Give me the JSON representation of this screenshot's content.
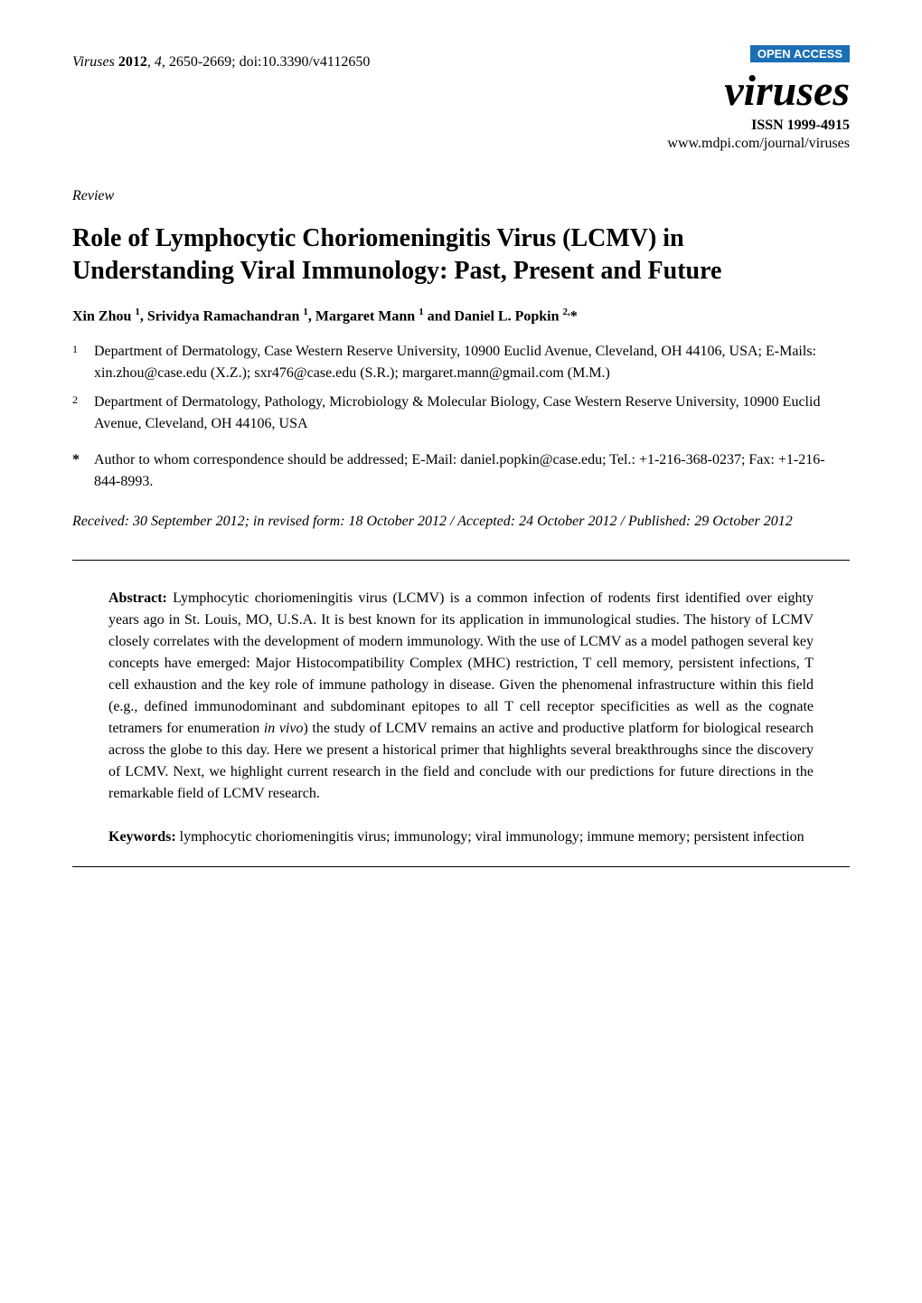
{
  "header": {
    "journal_italic": "Viruses",
    "year_bold": "2012",
    "volume_italic": "4",
    "pages": "2650-2669",
    "doi": "doi:10.3390/v4112650"
  },
  "journal_box": {
    "open_access": "OPEN ACCESS",
    "logo": "viruses",
    "issn": "ISSN 1999-4915",
    "url": "www.mdpi.com/journal/viruses",
    "badge_bg": "#1a6fb5",
    "badge_fg": "#ffffff"
  },
  "article_type": "Review",
  "title": "Role of Lymphocytic Choriomeningitis Virus (LCMV) in Understanding Viral Immunology: Past, Present and Future",
  "authors_html": "Xin Zhou <sup>1</sup>, Srividya Ramachandran <sup>1</sup>, Margaret Mann <sup>1</sup> and Daniel L. Popkin <sup>2,</sup>*",
  "affiliations": [
    {
      "num": "1",
      "text": "Department of Dermatology, Case Western Reserve University, 10900 Euclid Avenue, Cleveland, OH 44106, USA; E-Mails: xin.zhou@case.edu (X.Z.); sxr476@case.edu (S.R.); margaret.mann@gmail.com (M.M.)"
    },
    {
      "num": "2",
      "text": "Department of Dermatology, Pathology, Microbiology & Molecular Biology, Case Western Reserve University, 10900 Euclid Avenue, Cleveland, OH 44106, USA"
    }
  ],
  "corresponding": {
    "mark": "*",
    "text": "Author to whom correspondence should be addressed; E-Mail: daniel.popkin@case.edu; Tel.: +1-216-368-0237; Fax: +1-216-844-8993."
  },
  "dates": "Received: 30 September 2012; in revised form: 18 October 2012 / Accepted: 24 October 2012 / Published: 29 October 2012",
  "abstract": {
    "label": "Abstract:",
    "text": "Lymphocytic choriomeningitis virus (LCMV) is a common infection of rodents first identified over eighty years ago in St. Louis, MO, U.S.A. It is best known for its application in immunological studies. The history of LCMV closely correlates with the development of modern immunology. With the use of LCMV as a model pathogen several key concepts have emerged: Major Histocompatibility Complex (MHC) restriction, T cell memory, persistent infections, T cell exhaustion and the key role of immune pathology in disease. Given the phenomenal infrastructure within this field (e.g., defined immunodominant and subdominant epitopes to all T cell receptor specificities as well as the cognate tetramers for enumeration in vivo) the study of LCMV remains an active and productive platform for biological research across the globe to this day. Here we present a historical primer that highlights several breakthroughs since the discovery of LCMV. Next, we highlight current research in the field and conclude with our predictions for future directions in the remarkable field of LCMV research."
  },
  "keywords": {
    "label": "Keywords:",
    "text": "lymphocytic choriomeningitis virus; immunology; viral immunology; immune memory; persistent infection"
  },
  "style": {
    "body_width": 1020,
    "body_padding_v": 60,
    "body_padding_h": 80,
    "title_fontsize": 28,
    "body_fontsize": 16,
    "rule_color": "#000000",
    "text_color": "#000000",
    "bg_color": "#ffffff"
  }
}
